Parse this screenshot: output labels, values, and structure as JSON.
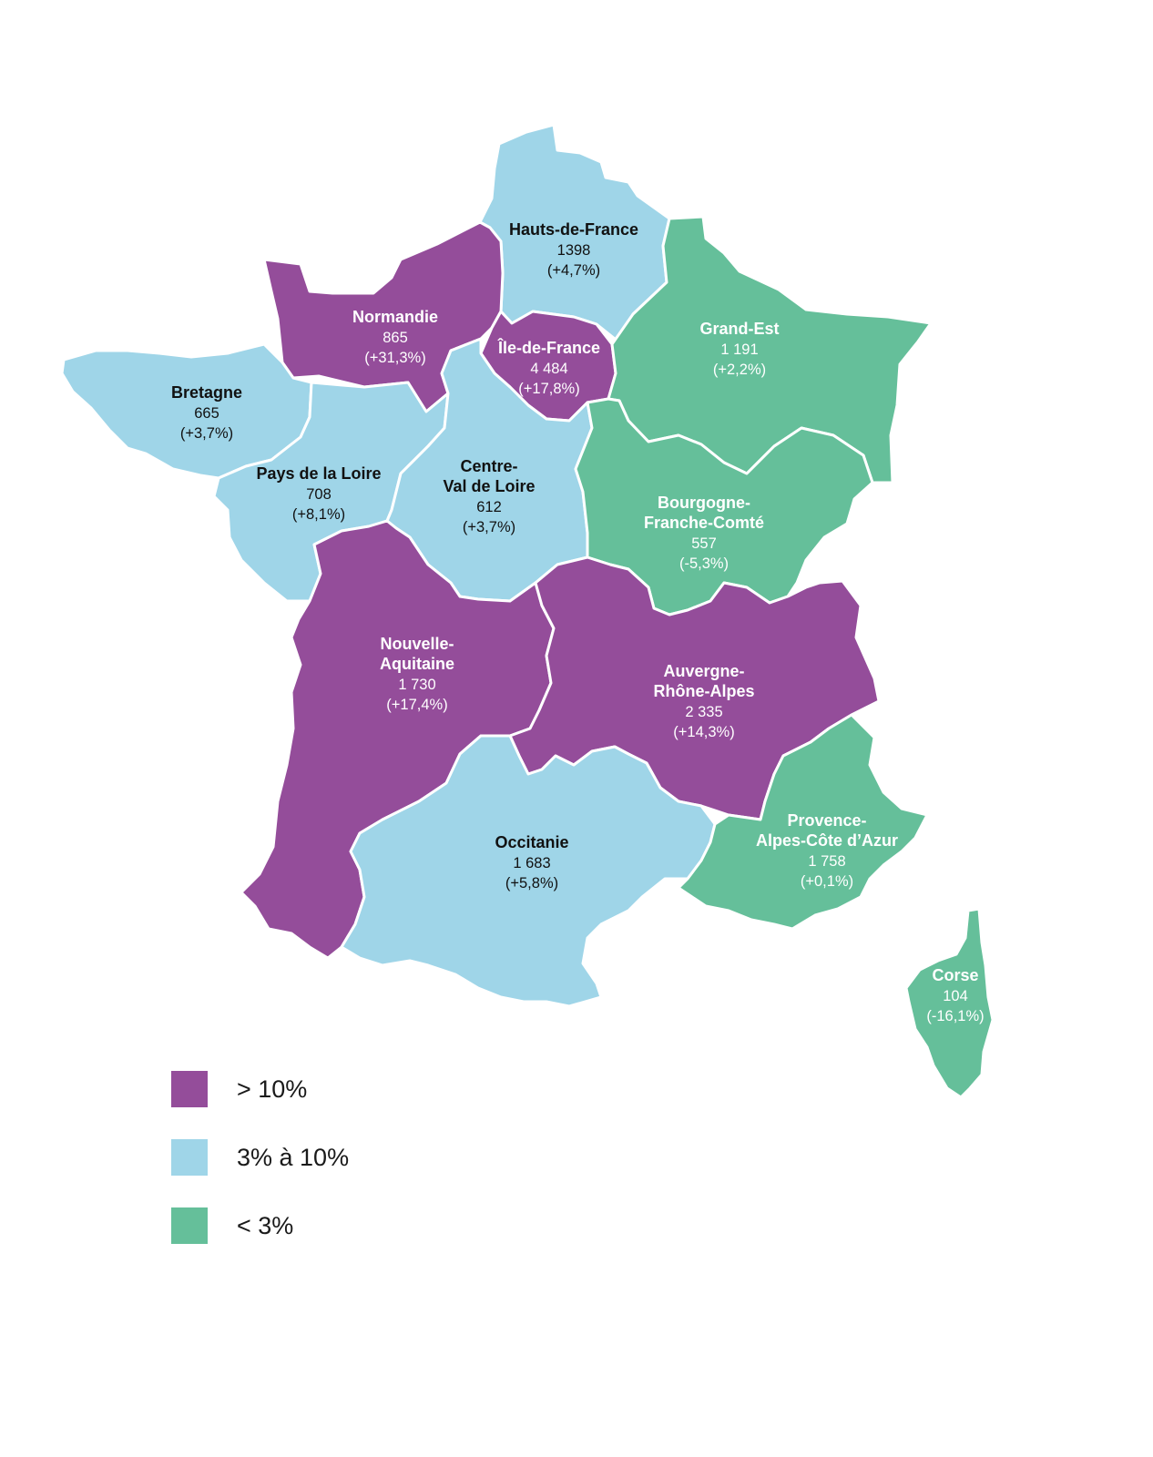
{
  "colors": {
    "high": "#944d9a",
    "mid": "#9fd5e8",
    "low": "#65bf9a"
  },
  "regions": [
    {
      "name": "Hauts-de-France",
      "name_lines": [
        "Hauts-de-France"
      ],
      "value": "1398",
      "change": "(+4,7%)",
      "category": "mid"
    },
    {
      "name": "Normandie",
      "name_lines": [
        "Normandie"
      ],
      "value": "865",
      "change": "(+31,3%)",
      "category": "high"
    },
    {
      "name": "Île-de-France",
      "name_lines": [
        "Île-de-France"
      ],
      "value": "4 484",
      "change": "(+17,8%)",
      "category": "high"
    },
    {
      "name": "Grand-Est",
      "name_lines": [
        "Grand-Est"
      ],
      "value": "1 191",
      "change": "(+2,2%)",
      "category": "low"
    },
    {
      "name": "Bretagne",
      "name_lines": [
        "Bretagne"
      ],
      "value": "665",
      "change": "(+3,7%)",
      "category": "mid"
    },
    {
      "name": "Pays de la Loire",
      "name_lines": [
        "Pays de la Loire"
      ],
      "value": "708",
      "change": "(+8,1%)",
      "category": "mid"
    },
    {
      "name": "Centre-Val de Loire",
      "name_lines": [
        "Centre-",
        "Val de Loire"
      ],
      "value": "612",
      "change": "(+3,7%)",
      "category": "mid"
    },
    {
      "name": "Bourgogne-Franche-Comté",
      "name_lines": [
        "Bourgogne-",
        "Franche-Comté"
      ],
      "value": "557",
      "change": "(-5,3%)",
      "category": "low"
    },
    {
      "name": "Nouvelle-Aquitaine",
      "name_lines": [
        "Nouvelle-",
        "Aquitaine"
      ],
      "value": "1 730",
      "change": "(+17,4%)",
      "category": "high"
    },
    {
      "name": "Auvergne-Rhône-Alpes",
      "name_lines": [
        "Auvergne-",
        "Rhône-Alpes"
      ],
      "value": "2 335",
      "change": "(+14,3%)",
      "category": "high"
    },
    {
      "name": "Occitanie",
      "name_lines": [
        "Occitanie"
      ],
      "value": "1 683",
      "change": "(+5,8%)",
      "category": "mid"
    },
    {
      "name": "Provence-Alpes-Côte d'Azur",
      "name_lines": [
        "Provence-",
        "Alpes-Côte d’Azur"
      ],
      "value": "1 758",
      "change": "(+0,1%)",
      "category": "low"
    },
    {
      "name": "Corse",
      "name_lines": [
        "Corse"
      ],
      "value": "104",
      "change": "(-16,1%)",
      "category": "low"
    }
  ],
  "legend": [
    {
      "label": "> 10%",
      "category": "high"
    },
    {
      "label": "3% à 10%",
      "category": "mid"
    },
    {
      "label": "< 3%",
      "category": "low"
    }
  ]
}
